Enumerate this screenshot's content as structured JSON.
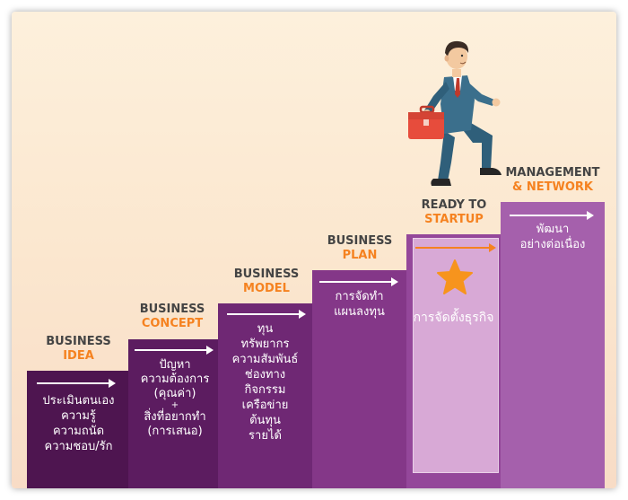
{
  "steps": [
    {
      "title1": "BUSINESS",
      "title2": "IDEA",
      "lines": [
        "ประเมินตนเอง",
        "ความรู้",
        "ความถนัด",
        "ความชอบ/รัก"
      ]
    },
    {
      "title1": "BUSINESS",
      "title2": "CONCEPT",
      "lines": [
        "ปัญหา",
        "ความต้องการ",
        "(คุณค่า)",
        "+",
        "สิ่งที่อยากทำ",
        "(การเสนอ)"
      ]
    },
    {
      "title1": "BUSINESS",
      "title2": "MODEL",
      "lines": [
        "ทุน",
        "ทรัพยากร",
        "ความสัมพันธ์",
        "ช่องทาง",
        "กิจกรรม",
        "เครือข่าย",
        "ต้นทุน",
        "รายได้"
      ]
    },
    {
      "title1": "BUSINESS",
      "title2": "PLAN",
      "lines": [
        "การจัดทำ",
        "แผนลงทุน"
      ]
    },
    {
      "title1": "READY TO",
      "title2": "STARTUP",
      "lines": [
        "การจัดตั้งธุรกิจ"
      ]
    },
    {
      "title1": "MANAGEMENT",
      "title2": "& NETWORK",
      "lines": [
        "พัฒนา",
        "อย่างต่อเนื่อง"
      ]
    }
  ],
  "colors": {
    "accent": "#f58220",
    "step_dark": "#4a1048",
    "step_light": "#a560ac",
    "highlight": "#d8a9d6"
  },
  "icons": [
    "star-icon",
    "briefcase-icon",
    "businessman-illustration"
  ]
}
